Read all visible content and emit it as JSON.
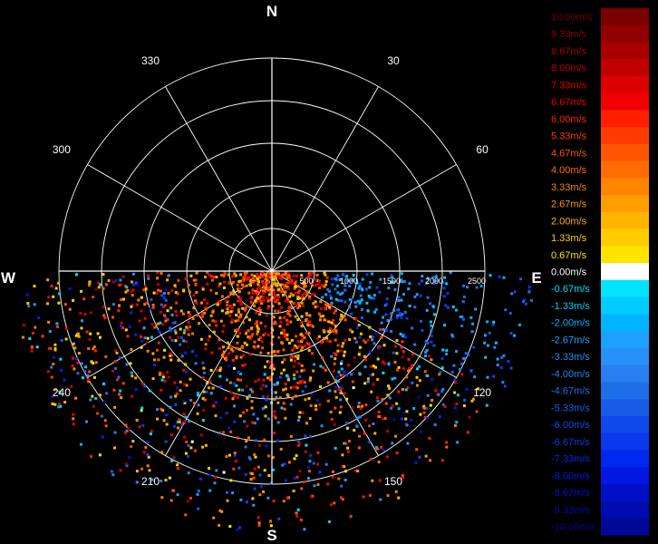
{
  "chart_data": {
    "type": "polar-scatter",
    "description_free": true,
    "cardinals": [
      {
        "label": "N",
        "az": 0
      },
      {
        "label": "E",
        "az": 90
      },
      {
        "label": "S",
        "az": 180
      },
      {
        "label": "W",
        "az": 270
      }
    ],
    "angle_labels": [
      {
        "label": "30",
        "az": 30
      },
      {
        "label": "60",
        "az": 60
      },
      {
        "label": "120",
        "az": 120
      },
      {
        "label": "150",
        "az": 150
      },
      {
        "label": "210",
        "az": 210
      },
      {
        "label": "240",
        "az": 240
      },
      {
        "label": "300",
        "az": 300
      },
      {
        "label": "330",
        "az": 330
      }
    ],
    "range_rings": [
      500,
      1000,
      1500,
      2000,
      2500
    ],
    "range_labels": [
      "500",
      "1000",
      "1500",
      "2000",
      "2500"
    ],
    "range_max": 2500,
    "spoke_interval_deg": 30,
    "scan_sector": {
      "from_az": 90,
      "to_az": 270
    },
    "colorbar": {
      "entries": [
        {
          "label": "10.00m/s",
          "value": 10.0,
          "color": "#7a0000"
        },
        {
          "label": "9.33m/s",
          "value": 9.33,
          "color": "#900000"
        },
        {
          "label": "8.67m/s",
          "value": 8.67,
          "color": "#a80000"
        },
        {
          "label": "8.00m/s",
          "value": 8.0,
          "color": "#c00000"
        },
        {
          "label": "7.33m/s",
          "value": 7.33,
          "color": "#dc0000"
        },
        {
          "label": "6.67m/s",
          "value": 6.67,
          "color": "#f00000"
        },
        {
          "label": "6.00m/s",
          "value": 6.0,
          "color": "#ff2000"
        },
        {
          "label": "5.33m/s",
          "value": 5.33,
          "color": "#ff3c00"
        },
        {
          "label": "4.67m/s",
          "value": 4.67,
          "color": "#ff5500"
        },
        {
          "label": "4.00m/s",
          "value": 4.0,
          "color": "#ff6c00"
        },
        {
          "label": "3.33m/s",
          "value": 3.33,
          "color": "#ff8400"
        },
        {
          "label": "2.67m/s",
          "value": 2.67,
          "color": "#ff9c00"
        },
        {
          "label": "2.00m/s",
          "value": 2.0,
          "color": "#ffb400"
        },
        {
          "label": "1.33m/s",
          "value": 1.33,
          "color": "#ffcc00"
        },
        {
          "label": "0.67m/s",
          "value": 0.67,
          "color": "#ffe400"
        },
        {
          "label": "0.00m/s",
          "value": 0.0,
          "color": "#ffffff"
        },
        {
          "label": "-0.67m/s",
          "value": -0.67,
          "color": "#00e4ff"
        },
        {
          "label": "-1.33m/s",
          "value": -1.33,
          "color": "#00ccff"
        },
        {
          "label": "-2.00m/s",
          "value": -2.0,
          "color": "#00b4ff"
        },
        {
          "label": "-2.67m/s",
          "value": -2.67,
          "color": "#1ea0ff"
        },
        {
          "label": "-3.33m/s",
          "value": -3.33,
          "color": "#2890f8"
        },
        {
          "label": "-4.00m/s",
          "value": -4.0,
          "color": "#2880f0"
        },
        {
          "label": "-4.67m/s",
          "value": -4.67,
          "color": "#1e6ee8"
        },
        {
          "label": "-5.33m/s",
          "value": -5.33,
          "color": "#1a5ce8"
        },
        {
          "label": "-6.00m/s",
          "value": -6.0,
          "color": "#104aea"
        },
        {
          "label": "-6.67m/s",
          "value": -6.67,
          "color": "#0a38ec"
        },
        {
          "label": "-7.33m/s",
          "value": -7.33,
          "color": "#0028ee"
        },
        {
          "label": "-8.00m/s",
          "value": -8.0,
          "color": "#0018e0"
        },
        {
          "label": "-8.67m/s",
          "value": -8.67,
          "color": "#0010c8"
        },
        {
          "label": "-9.33m/s",
          "value": -9.33,
          "color": "#000cb0"
        },
        {
          "label": "-10.00m/s",
          "value": -10.0,
          "color": "#000898"
        }
      ]
    }
  }
}
